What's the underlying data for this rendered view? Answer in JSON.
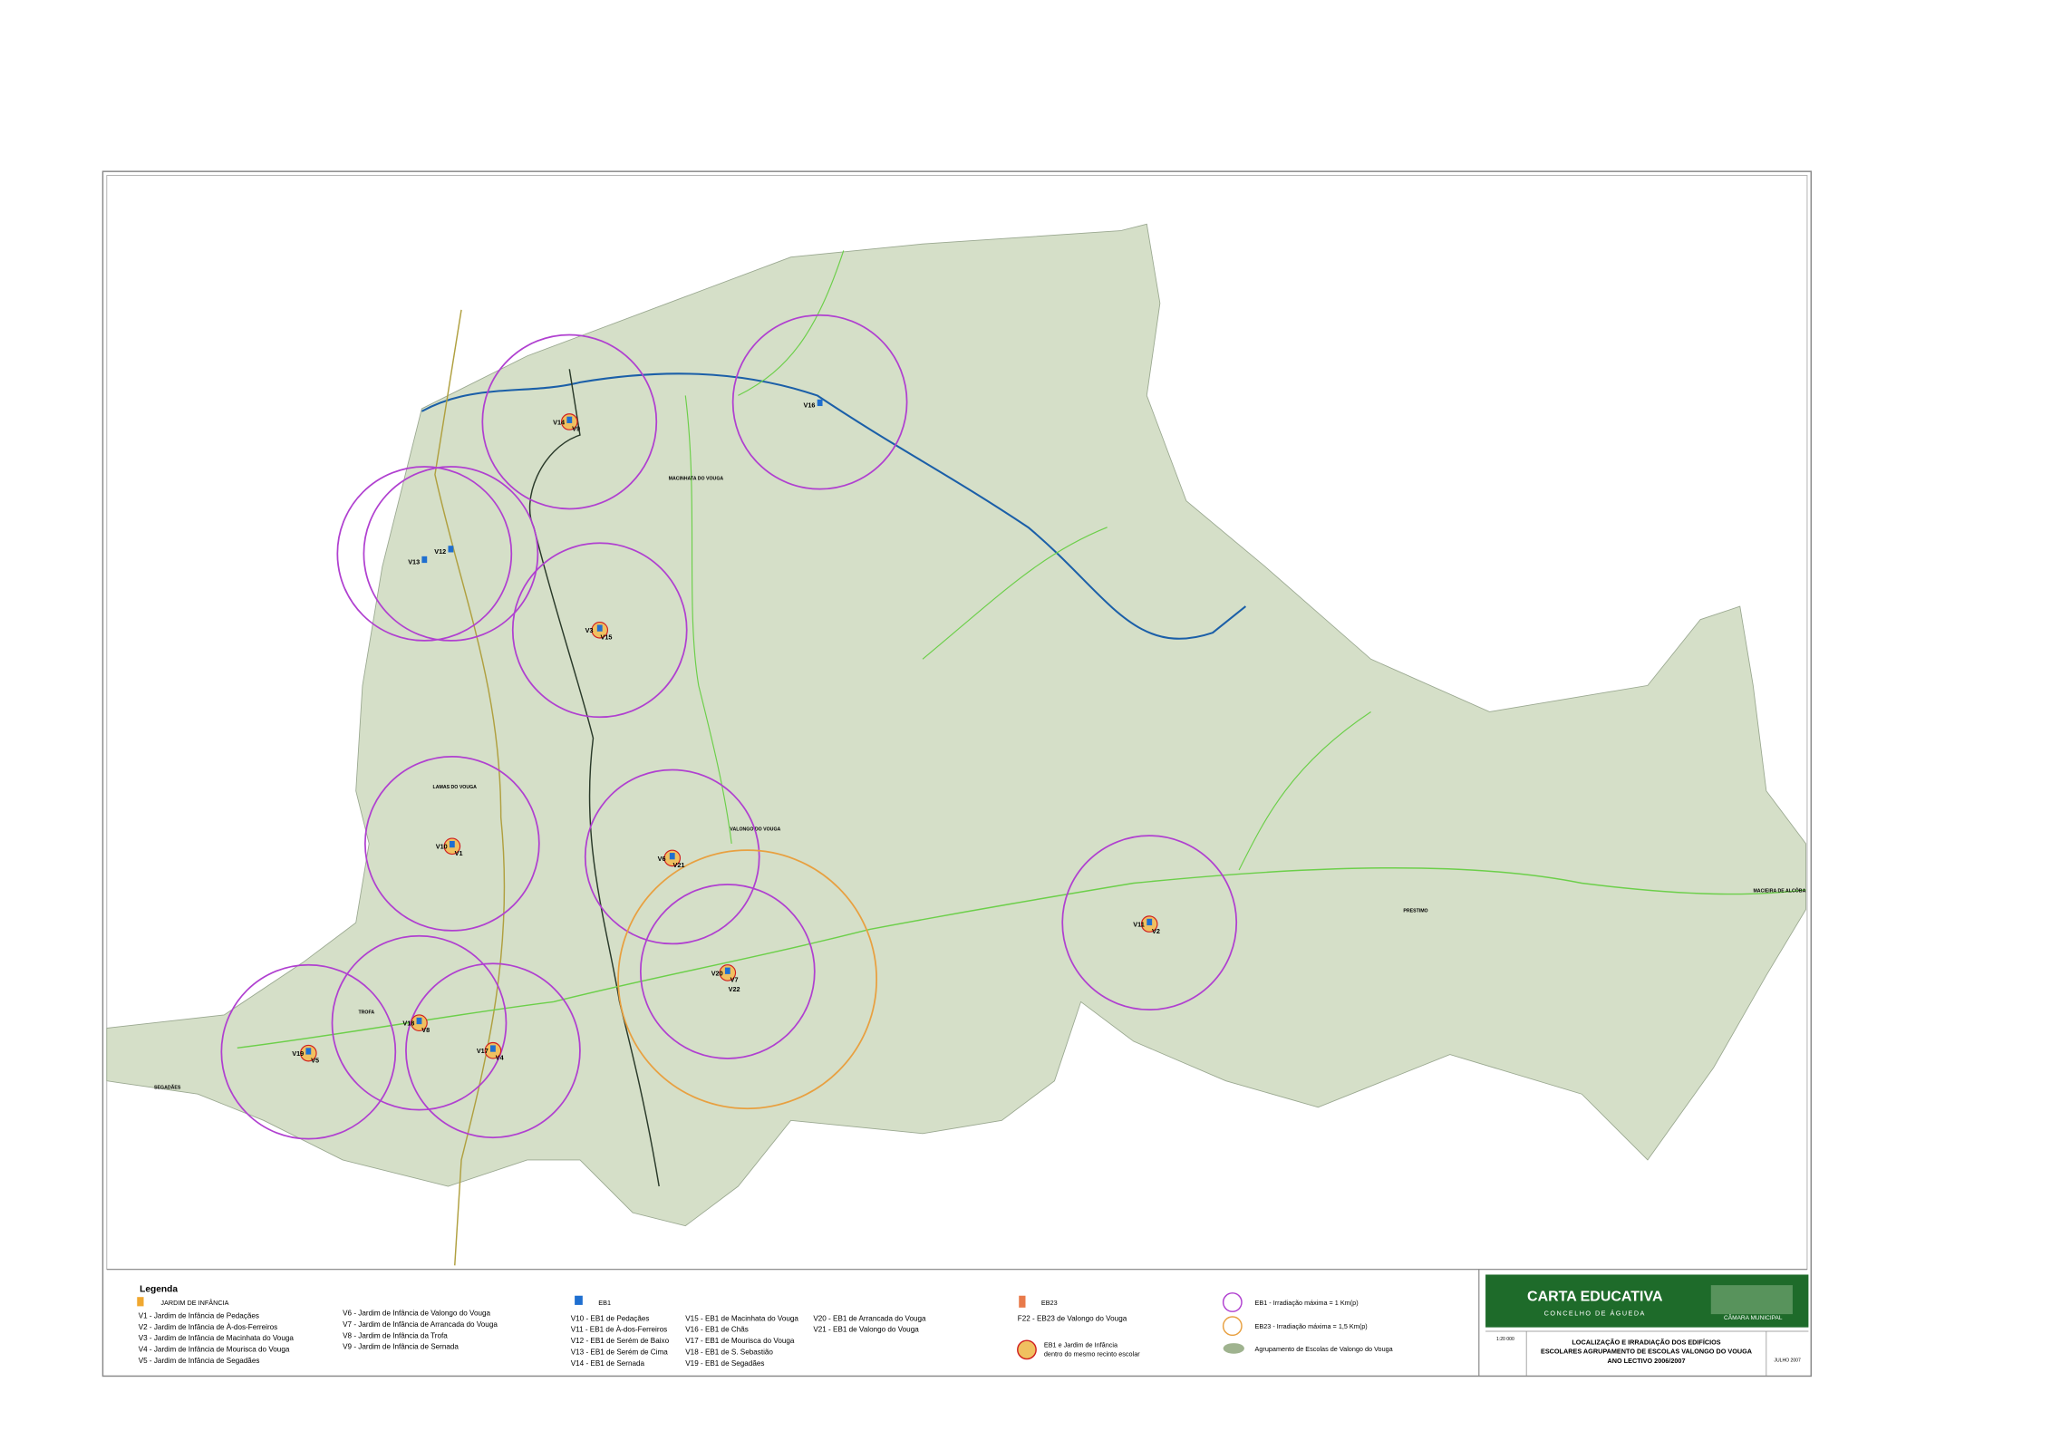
{
  "title_block": {
    "title": "CARTA EDUCATIVA",
    "subtitle": "CONCELHO DE ÁGUEDA",
    "org": "CÂMARA MUNICIPAL",
    "scale": "1:20 000",
    "description": [
      "LOCALIZAÇÃO E IRRADIAÇÃO DOS EDIFÍCIOS",
      "ESCOLARES AGRUPAMENTO DE ESCOLAS VALONGO DO VOUGA",
      "ANO LECTIVO 2006/2007"
    ],
    "date": "JULHO 2007"
  },
  "legend": {
    "title": "Legenda",
    "jardim_heading": "JARDIM DE INFÂNCIA",
    "jardim": [
      "V1 - Jardim de Infância de Pedaçães",
      "V2 - Jardim de Infância de À-dos-Ferreiros",
      "V3 - Jardim de Infância de Macinhata do Vouga",
      "V4 - Jardim de Infância de Mourisca do Vouga",
      "V5 - Jardim de Infância de Segadães",
      "V6 - Jardim de Infância de Valongo do Vouga",
      "V7 - Jardim de Infância de Arrancada do Vouga",
      "V8 - Jardim de Infância da Trofa",
      "V9 - Jardim de Infância de Sernada"
    ],
    "eb1_heading": "EB1",
    "eb1": [
      "V10 - EB1 de Pedaçães",
      "V11 - EB1 de À-dos-Ferreiros",
      "V12 - EB1 de Serém de Baixo",
      "V13 - EB1 de Serém de Cima",
      "V14 - EB1 de Sernada",
      "V15 - EB1 de Macinhata do Vouga",
      "V16 - EB1 de Chãs",
      "V17 - EB1 de Mourisca do Vouga",
      "V18 - EB1 de S. Sebastião",
      "V19 - EB1 de Segadães",
      "V20 - EB1 de Arrancada do Vouga",
      "V21 - EB1 de Valongo do Vouga"
    ],
    "eb23_heading": "EB23",
    "eb23": [
      "F22 - EB23 de Valongo do Vouga"
    ],
    "combined": [
      "EB1 e Jardim de Infância",
      "dentro do mesmo recinto escolar"
    ],
    "radius_eb1": "EB1 - Irradiação máxima = 1 Km(p)",
    "radius_eb23": "EB23 - Irradiação máxima = 1,5 Km(p)",
    "group": "Agrupamento de Escolas de Valongo do Vouga"
  },
  "map": {
    "places": [
      "MACINHATA DO VOUGA",
      "LAMAS DO VOUGA",
      "VALONGO DO VOUGA",
      "TROFA",
      "SEGADÃES",
      "PRESTIMO",
      "MACIEIRA DE ALCÔBA"
    ],
    "sites": [
      {
        "labels": [
          "V14",
          "V9"
        ]
      },
      {
        "labels": [
          "V16"
        ]
      },
      {
        "labels": [
          "V13"
        ]
      },
      {
        "labels": [
          "V12"
        ]
      },
      {
        "labels": [
          "V3",
          "V15"
        ]
      },
      {
        "labels": [
          "V10",
          "V1"
        ]
      },
      {
        "labels": [
          "V6",
          "V21"
        ]
      },
      {
        "labels": [
          "V20",
          "V7",
          "V22"
        ]
      },
      {
        "labels": [
          "V11",
          "V2"
        ]
      },
      {
        "labels": [
          "V19",
          "V5"
        ]
      },
      {
        "labels": [
          "V18",
          "V8"
        ]
      },
      {
        "labels": [
          "V17",
          "V4"
        ]
      }
    ]
  }
}
